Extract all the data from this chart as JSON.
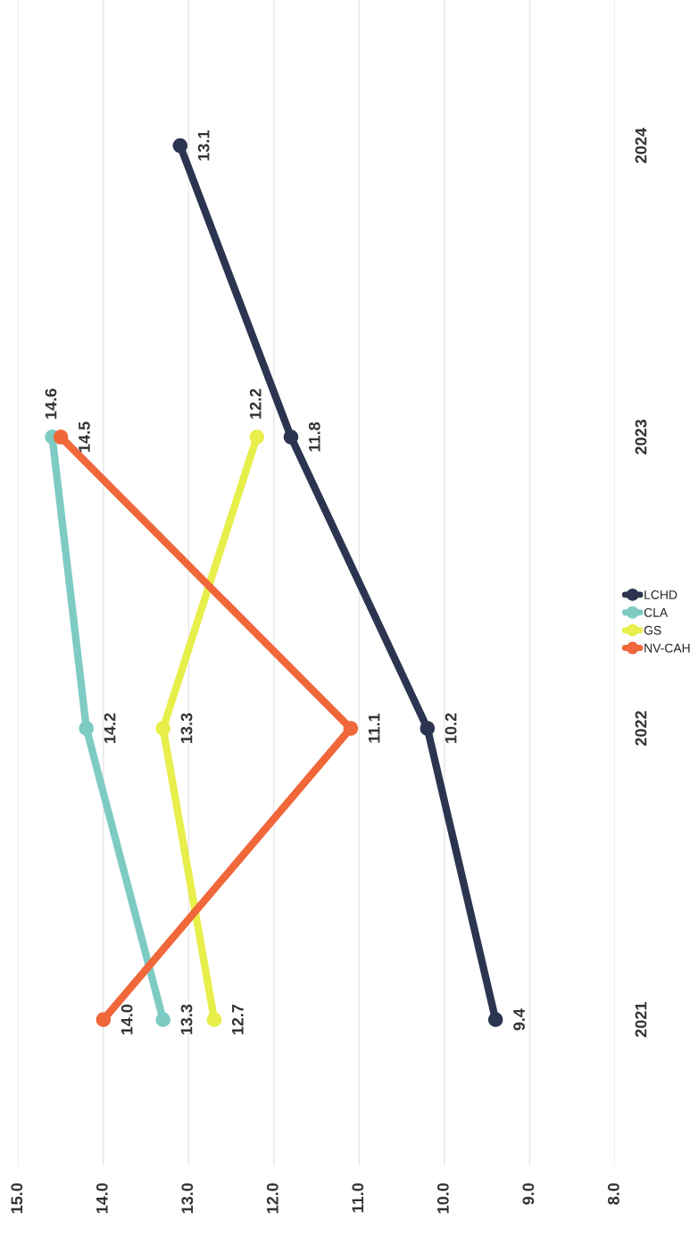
{
  "chart_data": {
    "type": "line",
    "orientation": "horizontal",
    "categories": [
      "2024",
      "2023",
      "2022",
      "2021"
    ],
    "series": [
      {
        "name": "LCHD",
        "color": "#2b3550",
        "values": [
          13.1,
          11.8,
          10.2,
          9.4
        ],
        "value_labels": [
          "13.1",
          "11.8",
          "10.2",
          "9.4"
        ]
      },
      {
        "name": "CLA",
        "color": "#7ecbc4",
        "values": [
          null,
          14.6,
          14.2,
          13.3
        ],
        "value_labels": [
          null,
          "14.6",
          "14.2",
          "13.3"
        ]
      },
      {
        "name": "GS",
        "color": "#e8ee4a",
        "values": [
          null,
          12.2,
          13.3,
          12.7
        ],
        "value_labels": [
          null,
          "12.2",
          "13.3",
          "12.7"
        ]
      },
      {
        "name": "NV-CAH",
        "color": "#f0673a",
        "values": [
          null,
          14.5,
          11.1,
          14.0
        ],
        "value_labels": [
          null,
          "14.5",
          "11.1",
          "14.0"
        ]
      }
    ],
    "xlim": [
      15.0,
      8.0
    ],
    "xticks": [
      {
        "value": 15,
        "label": "15.0"
      },
      {
        "value": 14,
        "label": "14.0"
      },
      {
        "value": 13,
        "label": "13.0"
      },
      {
        "value": 12,
        "label": "12.0"
      },
      {
        "value": 11,
        "label": "11.0"
      },
      {
        "value": 10,
        "label": "10.0"
      },
      {
        "value": 9,
        "label": "9.0"
      },
      {
        "value": 8,
        "label": "8.0"
      }
    ],
    "grid": "x",
    "legend": "right",
    "marker": "circle",
    "line_style": "solid"
  }
}
